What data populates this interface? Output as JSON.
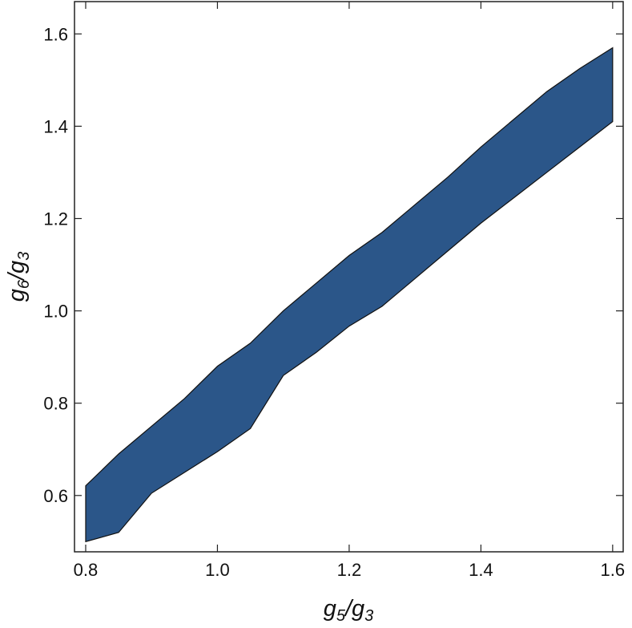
{
  "chart_data": {
    "type": "region",
    "xlabel": [
      "g",
      "5",
      "/g",
      "3"
    ],
    "ylabel": [
      "g",
      "6",
      "/g",
      "3"
    ],
    "x": [
      0.8,
      0.85,
      0.9,
      0.95,
      1.0,
      1.05,
      1.1,
      1.15,
      1.2,
      1.25,
      1.3,
      1.35,
      1.4,
      1.45,
      1.5,
      1.55,
      1.6
    ],
    "upper": [
      0.621,
      0.69,
      0.75,
      0.81,
      0.88,
      0.93,
      1.0,
      1.06,
      1.12,
      1.17,
      1.23,
      1.29,
      1.355,
      1.415,
      1.475,
      1.525,
      1.57
    ],
    "lower": [
      0.5,
      0.52,
      0.605,
      0.65,
      0.695,
      0.745,
      0.86,
      0.91,
      0.967,
      1.01,
      1.07,
      1.13,
      1.19,
      1.245,
      1.3,
      1.355,
      1.41
    ],
    "color": "#2b5689",
    "xlim": [
      0.783,
      1.616
    ],
    "ylim": [
      0.478,
      1.67
    ],
    "xticks": [
      0.8,
      {
        "value": 1,
        "label": "1.0"
      },
      1.2,
      1.4,
      1.6
    ],
    "yticks": [
      0.6,
      0.8,
      {
        "value": 1,
        "label": "1.0"
      },
      1.2,
      1.4,
      1.6
    ]
  }
}
